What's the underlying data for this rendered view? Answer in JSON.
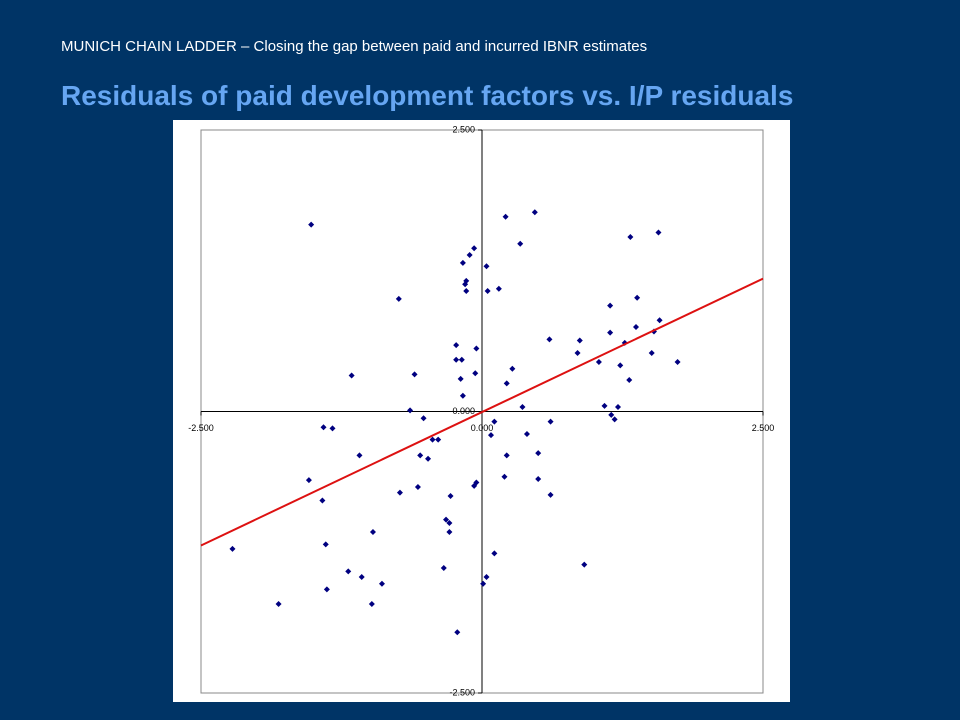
{
  "header": "MUNICH CHAIN LADDER – Closing the gap between paid and incurred IBNR estimates",
  "chart_data": {
    "type": "scatter",
    "title": "Residuals of paid development factors vs. I/P residuals",
    "xlim": [
      -2.5,
      2.5
    ],
    "ylim": [
      -2.5,
      2.5
    ],
    "xticks": [
      {
        "value": -2.5,
        "label": "-2.500"
      },
      {
        "value": 0,
        "label": "0.000"
      },
      {
        "value": 2.5,
        "label": "2.500"
      }
    ],
    "yticks": [
      {
        "value": -2.5,
        "label": "-2.500"
      },
      {
        "value": 0,
        "label": "0.000"
      },
      {
        "value": 2.5,
        "label": "2.500"
      }
    ],
    "series": [
      {
        "color": "#000080",
        "x": [
          -1.52,
          0.21,
          0.47,
          1.57,
          1.32,
          0.34,
          -0.07,
          -0.11,
          -0.17,
          0.04,
          -0.14,
          -0.15,
          -0.14,
          0.05,
          0.15,
          -0.74,
          1.38,
          1.14,
          1.58,
          1.37,
          1.14,
          1.53,
          0.6,
          0.87,
          1.27,
          -0.23,
          -0.05,
          0.85,
          1.51,
          -0.23,
          -0.18,
          1.04,
          1.74,
          1.23,
          0.27,
          -1.16,
          -0.6,
          -0.19,
          -0.06,
          1.31,
          0.22,
          -0.17,
          1.09,
          1.21,
          0.36,
          -0.64,
          1.15,
          1.18,
          -0.52,
          0.61,
          0.11,
          -1.41,
          -1.33,
          0.08,
          0.4,
          -0.44,
          -0.39,
          -1.09,
          -0.55,
          0.22,
          -0.48,
          0.5,
          -1.54,
          0.2,
          0.5,
          -0.05,
          -0.07,
          -0.57,
          -0.73,
          0.61,
          -0.28,
          -1.42,
          -0.32,
          -0.29,
          -0.97,
          -0.29,
          -1.39,
          -2.22,
          0.11,
          0.91,
          -0.34,
          -1.19,
          -1.07,
          0.04,
          -0.89,
          0.01,
          -1.38,
          -1.81,
          -0.98,
          -0.22
        ],
        "values": [
          1.66,
          1.73,
          1.77,
          1.59,
          1.55,
          1.49,
          1.45,
          1.39,
          1.32,
          1.29,
          1.16,
          1.13,
          1.07,
          1.07,
          1.09,
          1.0,
          1.01,
          0.94,
          0.81,
          0.75,
          0.7,
          0.71,
          0.64,
          0.63,
          0.61,
          0.59,
          0.56,
          0.52,
          0.52,
          0.46,
          0.46,
          0.44,
          0.44,
          0.41,
          0.38,
          0.32,
          0.33,
          0.29,
          0.34,
          0.28,
          0.25,
          0.14,
          0.05,
          0.04,
          0.04,
          0.01,
          -0.03,
          -0.07,
          -0.06,
          -0.09,
          -0.09,
          -0.14,
          -0.15,
          -0.21,
          -0.2,
          -0.25,
          -0.25,
          -0.39,
          -0.39,
          -0.39,
          -0.42,
          -0.37,
          -0.61,
          -0.58,
          -0.6,
          -0.63,
          -0.66,
          -0.67,
          -0.72,
          -0.74,
          -0.75,
          -0.79,
          -0.96,
          -0.99,
          -1.07,
          -1.07,
          -1.18,
          -1.22,
          -1.26,
          -1.36,
          -1.39,
          -1.42,
          -1.47,
          -1.47,
          -1.53,
          -1.53,
          -1.58,
          -1.71,
          -1.71,
          -1.96
        ]
      }
    ],
    "trendline": {
      "color": "#dd1111",
      "x": [
        -2.5,
        2.5
      ],
      "values": [
        -1.19,
        1.18
      ]
    }
  }
}
